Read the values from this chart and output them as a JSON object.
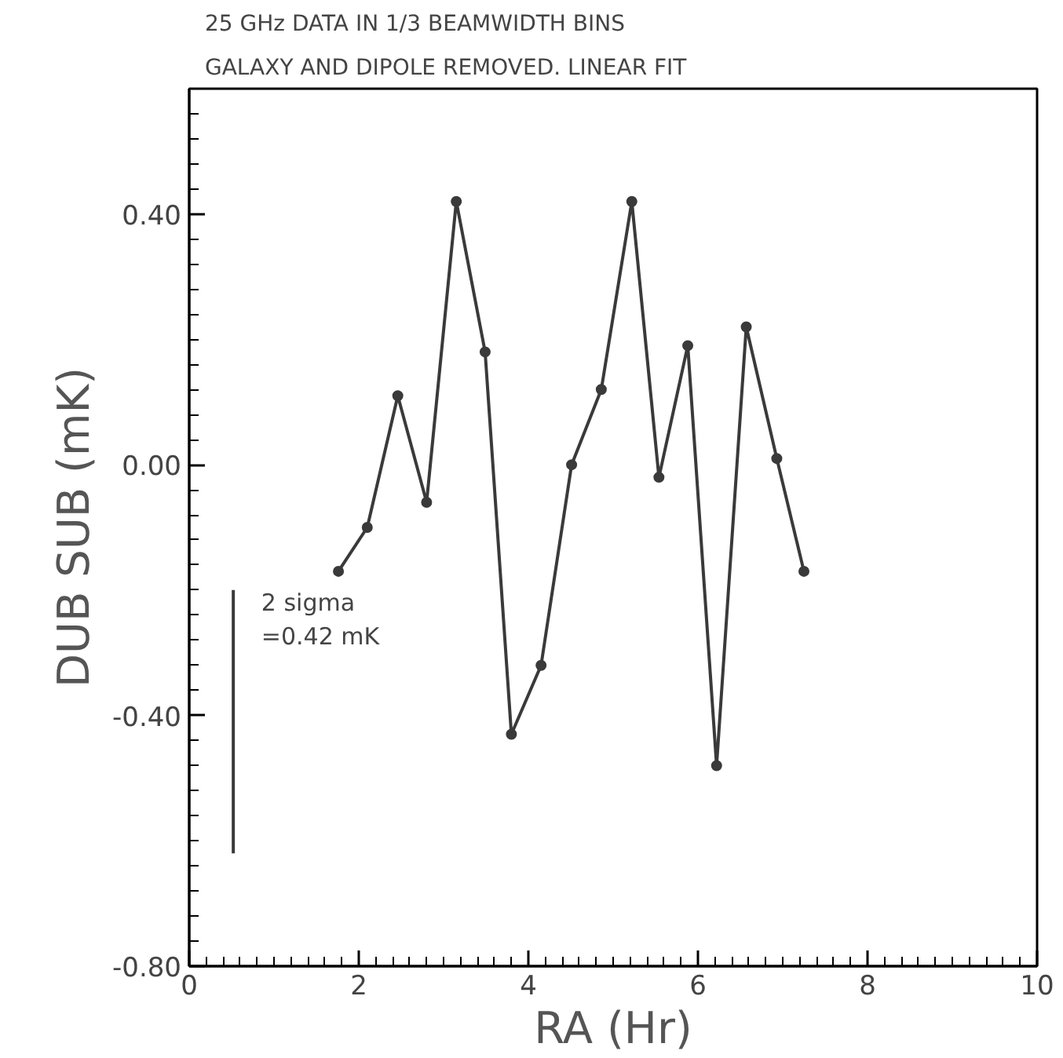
{
  "chart_data": {
    "type": "line",
    "title": "25 GHz DATA IN 1/3 BEAMWIDTH BINS",
    "subtitle": "GALAXY AND DIPOLE REMOVED. LINEAR FIT",
    "xlabel": "RA (Hr)",
    "ylabel": "DUB SUB (mK)",
    "x": [
      1.76,
      2.1,
      2.46,
      2.8,
      3.15,
      3.49,
      3.8,
      4.15,
      4.51,
      4.86,
      5.22,
      5.54,
      5.88,
      6.22,
      6.57,
      6.93,
      7.25
    ],
    "series": [
      {
        "color": "#3a3a3a",
        "marker": "circle",
        "values": [
          -0.17,
          -0.1,
          0.11,
          -0.06,
          0.42,
          0.18,
          -0.43,
          -0.32,
          0.0,
          0.12,
          0.42,
          -0.02,
          0.19,
          -0.48,
          0.22,
          0.01,
          -0.17
        ]
      },
      {
        "type": "line",
        "marker": "none",
        "color": "#3a3a3a",
        "x": [
          0.52,
          0.52
        ],
        "values": [
          -0.62,
          -0.2
        ]
      }
    ],
    "annotations": [
      "2 sigma\n=0.42 mK"
    ],
    "xlim": [
      0,
      10
    ],
    "ylim": [
      -0.8,
      0.6
    ],
    "xticks": [
      0,
      2,
      4,
      6,
      8,
      10
    ],
    "yticks": [
      {
        "value": -0.8,
        "label": "-0.80"
      },
      {
        "value": -0.4,
        "label": "-0.40"
      },
      {
        "value": 0,
        "label": "0.00"
      },
      {
        "value": 0.4,
        "label": "0.40"
      }
    ]
  }
}
